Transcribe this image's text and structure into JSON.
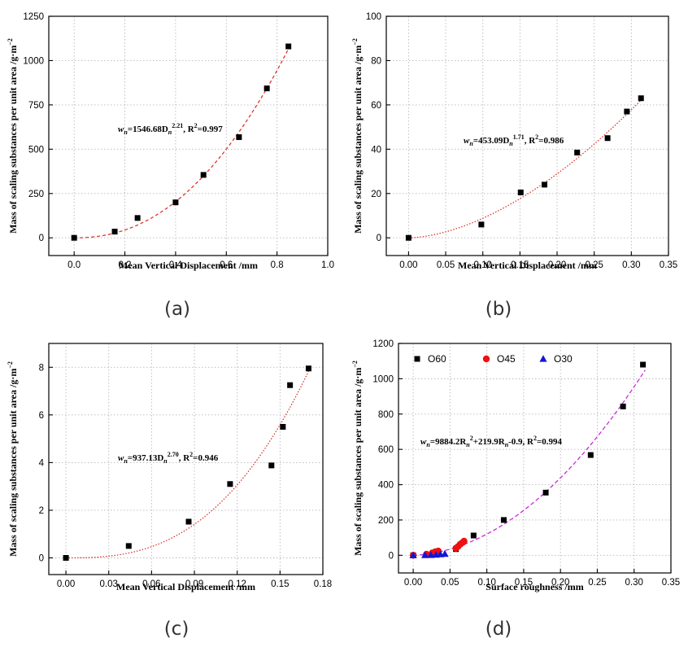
{
  "chart_data": [
    {
      "id": "a",
      "caption": "(a)",
      "type": "scatter",
      "xlabel": "Mean Vertical Displacement /mm",
      "ylabel": "Mass of scaling substances per unit area /g·m",
      "ylabel_sup": "−2",
      "xlim": [
        -0.1,
        1.0
      ],
      "ylim": [
        -100,
        1250
      ],
      "xticks": [
        0.0,
        0.2,
        0.4,
        0.6,
        0.8,
        1.0
      ],
      "xtick_labels": [
        "0.0",
        "0.2",
        "0.4",
        "0.6",
        "0.8",
        "1.0"
      ],
      "yticks": [
        0,
        250,
        500,
        750,
        1000,
        1250
      ],
      "ytick_labels": [
        "0",
        "250",
        "500",
        "750",
        "1000",
        "1250"
      ],
      "series": [
        {
          "name": "data",
          "marker": "square",
          "color": "#000000",
          "x": [
            0.0,
            0.16,
            0.25,
            0.4,
            0.51,
            0.65,
            0.76,
            0.845
          ],
          "y": [
            0,
            35,
            112,
            200,
            355,
            568,
            843,
            1080
          ]
        }
      ],
      "fit": {
        "a": 1546.68,
        "b": 2.21,
        "x_start": 0.0,
        "x_end": 0.85,
        "color": "#d9281e",
        "dash": "4 3"
      },
      "equation": {
        "pre": "w",
        "sub1": "n",
        "mid": "=1546.68D",
        "sub2": "n",
        "sup": "2.21",
        "post": ", R",
        "sup2": "2",
        "tail": "=0.997"
      }
    },
    {
      "id": "b",
      "caption": "(b)",
      "type": "scatter",
      "xlabel": "Mean Vertical Displacement /mm",
      "ylabel": "Mass of scaling substances per unit area /g·m",
      "ylabel_sup": "−2",
      "xlim": [
        -0.03,
        0.35
      ],
      "ylim": [
        -8,
        100
      ],
      "xticks": [
        0.0,
        0.05,
        0.1,
        0.15,
        0.2,
        0.25,
        0.3,
        0.35
      ],
      "xtick_labels": [
        "0.00",
        "0.05",
        "0.10",
        "0.15",
        "0.20",
        "0.25",
        "0.30",
        "0.35"
      ],
      "yticks": [
        0,
        20,
        40,
        60,
        80,
        100
      ],
      "ytick_labels": [
        "0",
        "20",
        "40",
        "60",
        "80",
        "100"
      ],
      "series": [
        {
          "name": "data",
          "marker": "square",
          "color": "#000000",
          "x": [
            0.0,
            0.098,
            0.151,
            0.183,
            0.227,
            0.268,
            0.294,
            0.313
          ],
          "y": [
            0,
            6,
            20.5,
            24,
            38.5,
            45,
            57,
            63
          ]
        }
      ],
      "fit": {
        "a": 453.09,
        "b": 1.71,
        "x_start": 0.0,
        "x_end": 0.315,
        "color": "#d9281e",
        "dash": "1.5 2"
      },
      "equation": {
        "pre": "w",
        "sub1": "n",
        "mid": "=453.09D",
        "sub2": "n",
        "sup": "1.71",
        "post": ", R",
        "sup2": "2",
        "tail": "=0.986"
      }
    },
    {
      "id": "c",
      "caption": "(c)",
      "type": "scatter",
      "xlabel": "Mean Vertical Displacement /mm",
      "ylabel": "Mass of scaling substances per unit area /g·m",
      "ylabel_sup": "−2",
      "xlim": [
        -0.012,
        0.18
      ],
      "ylim": [
        -0.7,
        9.0
      ],
      "xticks": [
        0.0,
        0.03,
        0.06,
        0.09,
        0.12,
        0.15,
        0.18
      ],
      "xtick_labels": [
        "0.00",
        "0.03",
        "0.06",
        "0.09",
        "0.12",
        "0.15",
        "0.18"
      ],
      "yticks": [
        0,
        2,
        4,
        6,
        8
      ],
      "ytick_labels": [
        "0",
        "2",
        "4",
        "6",
        "8"
      ],
      "series": [
        {
          "name": "data",
          "marker": "square",
          "color": "#000000",
          "x": [
            0.0,
            0.044,
            0.086,
            0.115,
            0.144,
            0.152,
            0.157,
            0.17
          ],
          "y": [
            0,
            0.5,
            1.52,
            3.1,
            3.88,
            5.5,
            7.25,
            7.95
          ]
        }
      ],
      "fit": {
        "a": 937.13,
        "b": 2.7,
        "x_start": 0.0,
        "x_end": 0.171,
        "color": "#d9281e",
        "dash": "1.5 2"
      },
      "equation": {
        "pre": "w",
        "sub1": "n",
        "mid": "=937.13D",
        "sub2": "n",
        "sup": "2.70",
        "post": ", R",
        "sup2": "2",
        "tail": "=0.946"
      }
    },
    {
      "id": "d",
      "caption": "(d)",
      "type": "scatter",
      "xlabel": "Surface roughness /mm",
      "ylabel": "Mass of scaling substances per unit area /g·m",
      "ylabel_sup": "−2",
      "xlim": [
        -0.02,
        0.35
      ],
      "ylim": [
        -100,
        1200
      ],
      "xticks": [
        0.0,
        0.05,
        0.1,
        0.15,
        0.2,
        0.25,
        0.3,
        0.35
      ],
      "xtick_labels": [
        "0.00",
        "0.05",
        "0.10",
        "0.15",
        "0.20",
        "0.25",
        "0.30",
        "0.35"
      ],
      "yticks": [
        0,
        200,
        400,
        600,
        800,
        1000,
        1200
      ],
      "ytick_labels": [
        "0",
        "200",
        "400",
        "600",
        "800",
        "1000",
        "1200"
      ],
      "legend": {
        "position": "top-left"
      },
      "series": [
        {
          "name": "O60",
          "marker": "square",
          "color": "#000000",
          "x": [
            0.0,
            0.058,
            0.082,
            0.123,
            0.18,
            0.241,
            0.285,
            0.312
          ],
          "y": [
            0,
            35,
            112,
            200,
            355,
            568,
            843,
            1080
          ]
        },
        {
          "name": "O45",
          "marker": "circle",
          "color": "#ee1111",
          "x": [
            0.0,
            0.018,
            0.026,
            0.03,
            0.034,
            0.058,
            0.061,
            0.064,
            0.067,
            0.069
          ],
          "y": [
            0,
            6,
            14,
            20,
            24,
            40,
            50,
            63,
            72,
            80
          ]
        },
        {
          "name": "O30",
          "marker": "triangle",
          "color": "#1414d8",
          "x": [
            0.0,
            0.016,
            0.024,
            0.031,
            0.037,
            0.043
          ],
          "y": [
            0,
            0.5,
            1.5,
            3.1,
            5.5,
            7.9
          ]
        }
      ],
      "fit": {
        "type": "poly2",
        "c2": 9884.2,
        "c1": 219.9,
        "c0": -0.9,
        "x_start": 0.0,
        "x_end": 0.315,
        "color": "#c21fd1",
        "dash": "5 3"
      },
      "equation": {
        "pre": "w",
        "sub1": "n",
        "mid": "=9884.2R",
        "sub2": "n",
        "sup": "2",
        "post": "+219.9R",
        "sub3": "n",
        "tail": "-0.9, R",
        "sup2": "2",
        "tail2": "=0.994"
      }
    }
  ]
}
